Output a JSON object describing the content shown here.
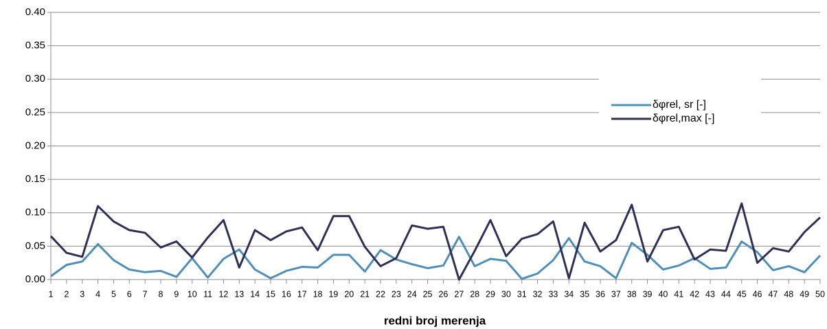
{
  "chart_data": {
    "type": "line",
    "x_label": "redni broj merenja",
    "categories": [
      "1",
      "2",
      "3",
      "4",
      "5",
      "6",
      "7",
      "8",
      "9",
      "10",
      "11",
      "12",
      "13",
      "14",
      "15",
      "16",
      "17",
      "18",
      "19",
      "20",
      "21",
      "22",
      "23",
      "24",
      "25",
      "26",
      "27",
      "28",
      "29",
      "30",
      "31",
      "32",
      "33",
      "34",
      "35",
      "36",
      "37",
      "38",
      "39",
      "40",
      "41",
      "42",
      "43",
      "44",
      "45",
      "46",
      "47",
      "48",
      "49",
      "50"
    ],
    "series": [
      {
        "name": "δφrel, sr [-]",
        "color": "#4f8fb7",
        "values": [
          0.005,
          0.022,
          0.027,
          0.053,
          0.029,
          0.015,
          0.011,
          0.013,
          0.004,
          0.032,
          0.003,
          0.031,
          0.045,
          0.015,
          0.002,
          0.013,
          0.019,
          0.018,
          0.037,
          0.037,
          0.012,
          0.044,
          0.03,
          0.023,
          0.017,
          0.021,
          0.064,
          0.02,
          0.031,
          0.028,
          0.001,
          0.009,
          0.029,
          0.062,
          0.027,
          0.02,
          0.002,
          0.055,
          0.037,
          0.015,
          0.021,
          0.032,
          0.016,
          0.018,
          0.057,
          0.041,
          0.014,
          0.02,
          0.011,
          0.036
        ]
      },
      {
        "name": "δφrel,max [-]",
        "color": "#2e2f55",
        "values": [
          0.065,
          0.04,
          0.034,
          0.11,
          0.087,
          0.074,
          0.07,
          0.048,
          0.057,
          0.033,
          0.063,
          0.089,
          0.018,
          0.074,
          0.059,
          0.072,
          0.078,
          0.044,
          0.095,
          0.095,
          0.049,
          0.02,
          0.032,
          0.081,
          0.076,
          0.079,
          0.0,
          0.043,
          0.089,
          0.035,
          0.061,
          0.068,
          0.087,
          0.002,
          0.085,
          0.042,
          0.059,
          0.112,
          0.027,
          0.074,
          0.079,
          0.03,
          0.045,
          0.043,
          0.114,
          0.025,
          0.047,
          0.042,
          0.071,
          0.093
        ]
      }
    ],
    "ylim": [
      0,
      0.4
    ],
    "yticks": [
      {
        "value": 0,
        "label": "0.00"
      },
      {
        "value": 0.05,
        "label": "0.05"
      },
      {
        "value": 0.1,
        "label": "0.10"
      },
      {
        "value": 0.15,
        "label": "0.15"
      },
      {
        "value": 0.2,
        "label": "0.20"
      },
      {
        "value": 0.25,
        "label": "0.25"
      },
      {
        "value": 0.3,
        "label": "0.30"
      },
      {
        "value": 0.35,
        "label": "0.35"
      },
      {
        "value": 0.4,
        "label": "0.40"
      }
    ],
    "grid": true
  }
}
